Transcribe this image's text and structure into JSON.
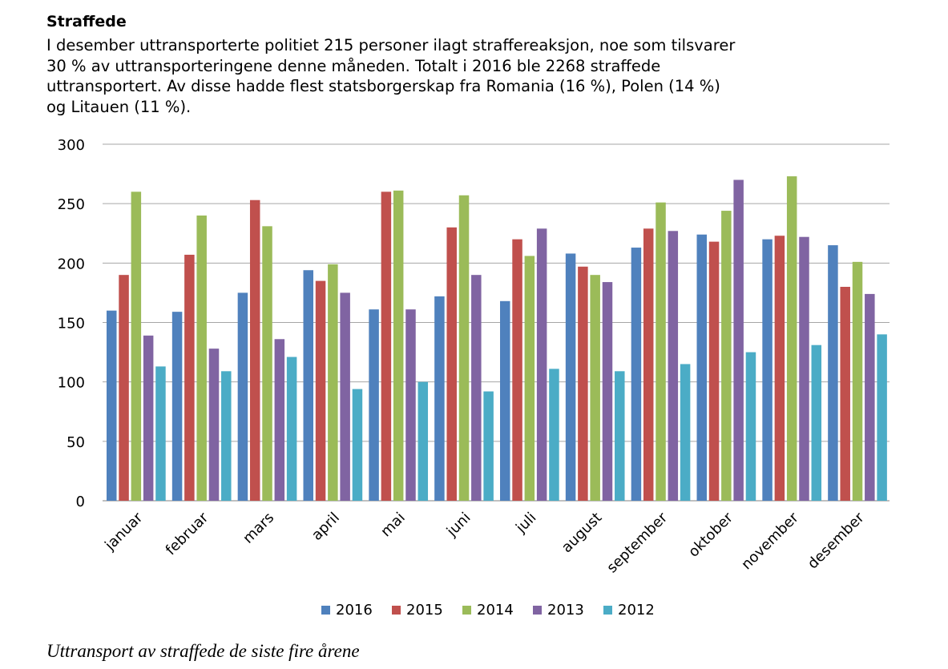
{
  "heading": "Straffede",
  "paragraph_lines": [
    "I desember uttransporterte politiet 215 personer ilagt straffereaksjon, noe som tilsvarer",
    "30 % av uttransporteringene denne måneden. Totalt i 2016 ble 2268 straffede",
    "uttransportert. Av disse hadde flest statsborgerskap fra Romania (16 %), Polen (14 %)",
    "og Litauen (11 %)."
  ],
  "caption": "Uttransport av straffede de siste fire årene",
  "chart_data": {
    "type": "bar",
    "title": "",
    "xlabel": "",
    "ylabel": "",
    "ylim": [
      0,
      300
    ],
    "yticks": [
      0,
      50,
      100,
      150,
      200,
      250,
      300
    ],
    "grid": true,
    "legend_position": "bottom",
    "categories": [
      "januar",
      "februar",
      "mars",
      "april",
      "mai",
      "juni",
      "juli",
      "august",
      "september",
      "oktober",
      "november",
      "desember"
    ],
    "series": [
      {
        "name": "2016",
        "color": "#4F81BD",
        "values": [
          160,
          159,
          175,
          194,
          161,
          172,
          168,
          208,
          213,
          224,
          220,
          215
        ]
      },
      {
        "name": "2015",
        "color": "#C0504D",
        "values": [
          190,
          207,
          253,
          185,
          260,
          230,
          220,
          197,
          229,
          218,
          223,
          180
        ]
      },
      {
        "name": "2014",
        "color": "#9BBB59",
        "values": [
          260,
          240,
          231,
          199,
          261,
          257,
          206,
          190,
          251,
          244,
          273,
          201
        ]
      },
      {
        "name": "2013",
        "color": "#8064A2",
        "values": [
          139,
          128,
          136,
          175,
          161,
          190,
          229,
          184,
          227,
          270,
          222,
          174
        ]
      },
      {
        "name": "2012",
        "color": "#4BACC6",
        "values": [
          113,
          109,
          121,
          94,
          100,
          92,
          111,
          109,
          115,
          125,
          131,
          140
        ]
      }
    ]
  }
}
